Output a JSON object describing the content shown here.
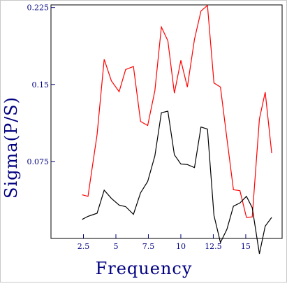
{
  "chart_data": {
    "type": "line",
    "title": "",
    "xlabel": "Frequency",
    "ylabel": "Sigma(P/S)",
    "xlim": [
      0,
      17.8
    ],
    "ylim": [
      0,
      0.2275
    ],
    "x_ticks": [
      2.5,
      5,
      7.5,
      10,
      12.5,
      15
    ],
    "x_tick_labels": [
      "2.5",
      "5",
      "7.5",
      "10",
      "12.5",
      "15"
    ],
    "y_ticks": [
      0.075,
      0.15,
      0.225
    ],
    "y_tick_labels": [
      "0.075",
      "0.15",
      "0.225"
    ],
    "grid": false,
    "legend": "none",
    "colors": {
      "frame": "#000000",
      "ticks": "#000080",
      "axis_text": "#000080",
      "red_series": "#ff0000",
      "black_series": "#000000"
    },
    "series": [
      {
        "color": "#ff0000",
        "points": [
          [
            2.4,
            0.0425
          ],
          [
            2.85,
            0.041
          ],
          [
            3.55,
            0.101
          ],
          [
            4.1,
            0.1745
          ],
          [
            4.65,
            0.1535
          ],
          [
            5.25,
            0.143
          ],
          [
            5.75,
            0.1645
          ],
          [
            6.35,
            0.1675
          ],
          [
            6.9,
            0.114
          ],
          [
            7.45,
            0.11
          ],
          [
            8.0,
            0.144
          ],
          [
            8.5,
            0.206
          ],
          [
            9.0,
            0.1925
          ],
          [
            9.5,
            0.1415
          ],
          [
            10.0,
            0.1735
          ],
          [
            10.5,
            0.1475
          ],
          [
            11.05,
            0.194
          ],
          [
            11.55,
            0.2215
          ],
          [
            12.05,
            0.227
          ],
          [
            12.55,
            0.1515
          ],
          [
            13.05,
            0.1475
          ],
          [
            13.55,
            0.097
          ],
          [
            14.05,
            0.0475
          ],
          [
            14.55,
            0.0465
          ],
          [
            15.05,
            0.0205
          ],
          [
            15.5,
            0.021
          ],
          [
            16.05,
            0.1165
          ],
          [
            16.5,
            0.1425
          ],
          [
            17.0,
            0.083
          ]
        ]
      },
      {
        "color": "#000000",
        "points": [
          [
            2.4,
            0.0185
          ],
          [
            2.85,
            0.0215
          ],
          [
            3.55,
            0.0245
          ],
          [
            4.1,
            0.047
          ],
          [
            4.65,
            0.039
          ],
          [
            5.25,
            0.0325
          ],
          [
            5.75,
            0.031
          ],
          [
            6.35,
            0.0235
          ],
          [
            6.9,
            0.0445
          ],
          [
            7.45,
            0.0555
          ],
          [
            8.0,
            0.0805
          ],
          [
            8.5,
            0.1225
          ],
          [
            9.0,
            0.124
          ],
          [
            9.5,
            0.0815
          ],
          [
            10.0,
            0.0725
          ],
          [
            10.5,
            0.072
          ],
          [
            11.05,
            0.069
          ],
          [
            11.55,
            0.1085
          ],
          [
            12.05,
            0.1065
          ],
          [
            12.55,
            0.0225
          ],
          [
            13.05,
            -0.004
          ],
          [
            13.55,
            0.009
          ],
          [
            14.05,
            0.0315
          ],
          [
            14.55,
            0.0345
          ],
          [
            15.05,
            0.041
          ],
          [
            15.5,
            0.03
          ],
          [
            16.05,
            -0.015
          ],
          [
            16.5,
            0.012
          ],
          [
            17.0,
            0.0205
          ]
        ]
      }
    ]
  }
}
